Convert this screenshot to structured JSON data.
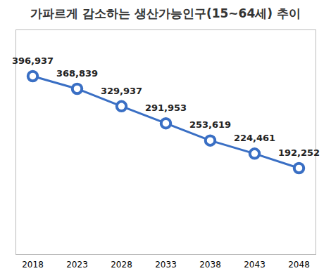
{
  "chart_data": {
    "type": "line",
    "title": "가파르게 감소하는 생산가능인구(15~64세) 추이",
    "categories": [
      "2018",
      "2023",
      "2028",
      "2033",
      "2038",
      "2043",
      "2048"
    ],
    "values": [
      396937,
      368839,
      329937,
      291953,
      253619,
      224461,
      192252
    ],
    "value_labels": [
      "396,937",
      "368,839",
      "329,937",
      "291,953",
      "253,619",
      "224,461",
      "192,252"
    ],
    "color": "#3a6fc4",
    "marker": "circle",
    "line_style": "solid",
    "data_labels": true,
    "ylim": [
      0,
      500000
    ],
    "grid": false,
    "tick_labels": "x"
  }
}
